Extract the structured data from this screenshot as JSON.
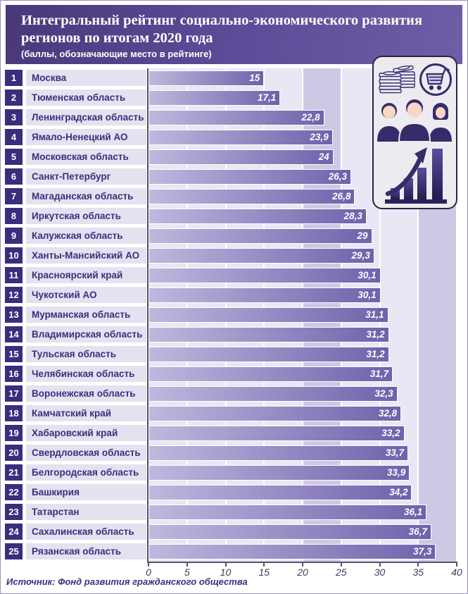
{
  "header": {
    "title": "Интегральный рейтинг социально-экономического развития регионов по итогам 2020 года",
    "subtitle": "(баллы, обозначающие место в рейтинге)"
  },
  "footer": {
    "source": "Источник: Фонд развития гражданского общества"
  },
  "icons": {
    "panel_items": [
      "money-stacks-icon",
      "shopping-cart-icon",
      "people-icon",
      "growth-chart-icon"
    ]
  },
  "colors": {
    "header_bg": "#5a4a96",
    "rank_box": "#3a2d7d",
    "label_strip": "#e5e1f0",
    "label_text": "#3b2e7e",
    "bar_gradient_from": "#c0b8de",
    "bar_gradient_to": "#6f61ab",
    "plot_bg": "#eae7f4",
    "highlight_band": "#cfc8e4",
    "gridline": "#ffffff",
    "axis": "#52526a",
    "icon_dark": "#372c6b",
    "icon_skin": "#f9d7c5"
  },
  "chart_data": {
    "type": "bar",
    "orientation": "horizontal",
    "title": "Интегральный рейтинг социально-экономического развития регионов по итогам 2020 года",
    "subtitle": "(баллы, обозначающие место в рейтинге)",
    "ranks": [
      1,
      2,
      3,
      4,
      5,
      6,
      7,
      8,
      9,
      10,
      11,
      12,
      13,
      14,
      15,
      16,
      17,
      18,
      19,
      20,
      21,
      22,
      23,
      24,
      25
    ],
    "categories": [
      "Москва",
      "Тюменская область",
      "Ленинградская область",
      "Ямало-Ненецкий АО",
      "Московская область",
      "Санкт-Петербург",
      "Магаданская область",
      "Иркутская область",
      "Калужская область",
      "Ханты-Мансийский АО",
      "Красноярский край",
      "Чукотский АО",
      "Мурманская область",
      "Владимирская область",
      "Тульская область",
      "Челябинская область",
      "Воронежская область",
      "Камчатский край",
      "Хабаровский край",
      "Свердловская область",
      "Белгородская область",
      "Башкирия",
      "Татарстан",
      "Сахалинская область",
      "Рязанская область"
    ],
    "values": [
      15,
      17.1,
      22.8,
      23.9,
      24,
      26.3,
      26.8,
      28.3,
      29,
      29.3,
      30.1,
      30.1,
      31.1,
      31.2,
      31.2,
      31.7,
      32.3,
      32.8,
      33.2,
      33.7,
      33.9,
      34.2,
      36.1,
      36.7,
      37.3
    ],
    "value_labels": [
      "15",
      "17,1",
      "22,8",
      "23,9",
      "24",
      "26,3",
      "26,8",
      "28,3",
      "29",
      "29,3",
      "30,1",
      "30,1",
      "31,1",
      "31,2",
      "31,2",
      "31,7",
      "32,3",
      "32,8",
      "33,2",
      "33,7",
      "33,9",
      "34,2",
      "36,1",
      "36,7",
      "37,3"
    ],
    "xlim": [
      0,
      40
    ],
    "x_ticks": [
      0,
      5,
      10,
      15,
      20,
      25,
      30,
      35,
      40
    ],
    "highlight_bands": [
      [
        20,
        25
      ],
      [
        35,
        40
      ]
    ],
    "grid": true,
    "legend": false,
    "xlabel": "",
    "ylabel": "",
    "source": "Источник: Фонд развития гражданского общества"
  }
}
